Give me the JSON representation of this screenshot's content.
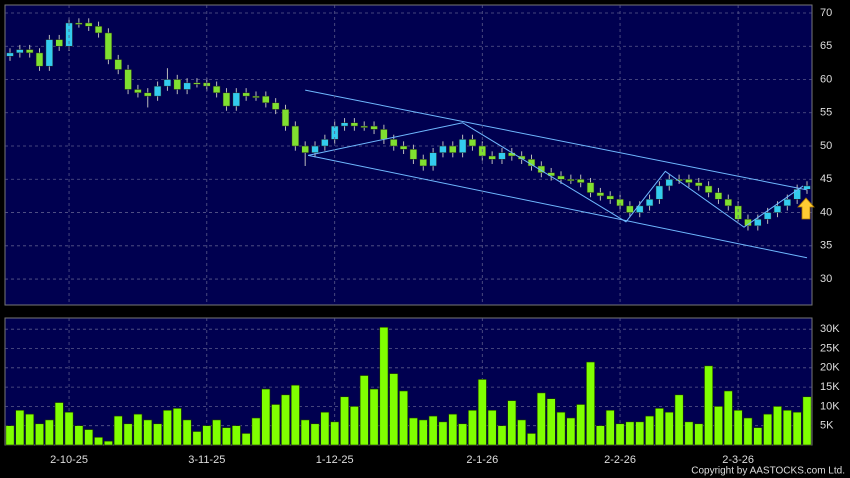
{
  "chart_data": [
    {
      "type": "candlestick",
      "open": [
        63.5,
        64,
        64.5,
        64,
        62,
        66,
        65,
        68.5,
        68.5,
        68,
        67,
        63,
        61.5,
        58.5,
        58,
        57.5,
        59,
        60,
        58.5,
        59.5,
        59.5,
        59,
        58,
        56,
        58,
        57.5,
        57.5,
        56.5,
        55.5,
        53,
        50,
        49,
        50,
        51,
        53,
        53.5,
        53,
        53,
        52.5,
        51,
        50,
        49.5,
        48,
        47,
        49,
        50,
        49,
        51,
        50,
        48.5,
        48,
        49,
        48.5,
        48,
        47,
        46,
        45.5,
        45,
        45,
        44.5,
        43,
        42.5,
        42,
        41,
        40,
        41,
        42,
        44,
        45,
        45,
        44.5,
        44,
        43,
        42,
        41,
        39,
        38,
        39,
        40,
        41,
        42,
        43.5
      ],
      "high": [
        64.7,
        65.2,
        65.2,
        64.7,
        66.7,
        66.7,
        69.2,
        69.2,
        69.2,
        68.7,
        67.7,
        63.7,
        62.2,
        59.2,
        58.7,
        59.7,
        61.7,
        60.7,
        60.2,
        60.2,
        60.2,
        59.7,
        58.7,
        58.7,
        58.7,
        58.2,
        58.2,
        57.2,
        56.2,
        53.7,
        50.7,
        50.7,
        51.7,
        53.7,
        54.2,
        54.2,
        53.7,
        53.7,
        53.2,
        51.7,
        50.7,
        50.2,
        48.7,
        49.7,
        50.7,
        50.7,
        51.7,
        51.7,
        50.7,
        49.2,
        49.7,
        49.7,
        49.2,
        48.7,
        47.7,
        46.7,
        46.2,
        45.7,
        45.7,
        45.2,
        43.7,
        43.2,
        42.7,
        41.7,
        41.7,
        42.7,
        44.7,
        45.7,
        45.7,
        45.7,
        45.2,
        44.7,
        43.7,
        42.7,
        41.7,
        39.7,
        39.7,
        40.7,
        41.7,
        42.7,
        44.2,
        44.7
      ],
      "low": [
        62.8,
        63.3,
        63.3,
        61.3,
        61.3,
        64.3,
        64.3,
        67.8,
        67.3,
        66.3,
        62.3,
        60.8,
        57.8,
        57.3,
        55.8,
        56.8,
        58.3,
        57.8,
        57.8,
        58.8,
        58.3,
        57.3,
        55.3,
        55.3,
        56.8,
        56.8,
        55.8,
        54.8,
        52.3,
        49.3,
        47,
        48.3,
        49.3,
        50.3,
        52.3,
        52.3,
        52.3,
        51.8,
        50.3,
        49.3,
        48.8,
        47.3,
        46.3,
        46.3,
        48.3,
        48.3,
        48.3,
        49.3,
        47.8,
        47.3,
        47.3,
        47.8,
        47.3,
        46.3,
        45.3,
        44.8,
        44.3,
        44.3,
        43.8,
        42.3,
        41.8,
        41.3,
        40.3,
        39.3,
        39.3,
        40.3,
        41.3,
        43.3,
        44.3,
        43.8,
        43.3,
        42.3,
        41.3,
        40.3,
        38.3,
        37.3,
        37.3,
        38.3,
        39.3,
        40.3,
        41.3,
        42.8
      ],
      "close": [
        64,
        64.5,
        64,
        62,
        66,
        65,
        68.5,
        68.5,
        68,
        67,
        63,
        61.5,
        58.5,
        58,
        57.5,
        59,
        60,
        58.5,
        59.5,
        59.5,
        59,
        58,
        56,
        58,
        57.5,
        57.5,
        56.5,
        55.5,
        53,
        50,
        49,
        50,
        51,
        53,
        53.5,
        53,
        53,
        52.5,
        51,
        50,
        49.5,
        48,
        47,
        49,
        50,
        49,
        51,
        50,
        48.5,
        48,
        49,
        48.5,
        48,
        47,
        46,
        45.5,
        45,
        45,
        44.5,
        43,
        42.5,
        42,
        41,
        40,
        41,
        42,
        44,
        45,
        45,
        44.5,
        44,
        43,
        42,
        41,
        39,
        38,
        39,
        40,
        41,
        42,
        43.5,
        44
      ],
      "up_color": "#33ccee",
      "down_color": "#80e030",
      "ylim": [
        26.1,
        71.2
      ],
      "yticks": [
        30,
        35,
        40,
        45,
        50,
        55,
        60,
        65,
        70
      ],
      "grid": true,
      "lines": [
        {
          "color": "#6fb8ff",
          "x": [
            30,
            81
          ],
          "y": [
            58.4,
            43.4
          ]
        },
        {
          "color": "#6fb8ff",
          "x": [
            30.3,
            81
          ],
          "y": [
            48.6,
            33.2
          ]
        },
        {
          "color": "#6fb8ff",
          "x": [
            30.3,
            46,
            62.6,
            66.6,
            74.6,
            80.6
          ],
          "y": [
            48.6,
            53.5,
            38.6,
            46.2,
            37.8,
            44
          ]
        }
      ]
    },
    {
      "type": "bar",
      "categories": [
        null,
        null,
        null,
        null,
        null,
        null,
        "2-10-25",
        null,
        null,
        null,
        null,
        null,
        null,
        null,
        null,
        null,
        null,
        null,
        null,
        null,
        "3-11-25",
        null,
        null,
        null,
        null,
        null,
        null,
        null,
        null,
        null,
        null,
        null,
        null,
        "1-12-25",
        null,
        null,
        null,
        null,
        null,
        null,
        null,
        null,
        null,
        null,
        null,
        null,
        null,
        null,
        "2-1-26",
        null,
        null,
        null,
        null,
        null,
        null,
        null,
        null,
        null,
        null,
        null,
        null,
        null,
        "2-2-26",
        null,
        null,
        null,
        null,
        null,
        null,
        null,
        null,
        null,
        null,
        null,
        "2-3-26",
        null,
        null,
        null,
        null,
        null,
        null,
        null
      ],
      "values": [
        5000,
        9000,
        8000,
        5500,
        6500,
        11000,
        8500,
        5000,
        4000,
        2000,
        1000,
        7500,
        5500,
        8000,
        6500,
        5500,
        9000,
        9500,
        6500,
        3500,
        5000,
        6500,
        4500,
        5000,
        3000,
        7000,
        14500,
        10500,
        13000,
        15500,
        6500,
        5500,
        8500,
        6000,
        12500,
        10000,
        18000,
        14500,
        30500,
        18500,
        14000,
        7000,
        6500,
        7500,
        6000,
        8000,
        5500,
        9000,
        17000,
        9000,
        5000,
        11500,
        6500,
        3000,
        13500,
        12000,
        8500,
        7000,
        10500,
        21500,
        5000,
        9000,
        5500,
        6000,
        6000,
        7500,
        9500,
        8500,
        13000,
        6000,
        5500,
        20500,
        10000,
        14000,
        9000,
        7000,
        4500,
        8000,
        10000,
        9000,
        8500,
        12500
      ],
      "color": "#80ff00",
      "ylim": [
        0,
        32900
      ],
      "yticks": [
        {
          "value": 5000,
          "label": "5K"
        },
        {
          "value": 10000,
          "label": "10K"
        },
        {
          "value": 15000,
          "label": "15K"
        },
        {
          "value": 20000,
          "label": "20K"
        },
        {
          "value": 25000,
          "label": "25K"
        },
        {
          "value": 30000,
          "label": "30K"
        }
      ],
      "grid": true
    }
  ],
  "copyright": "Copyright by AASTOCKS.com Ltd."
}
